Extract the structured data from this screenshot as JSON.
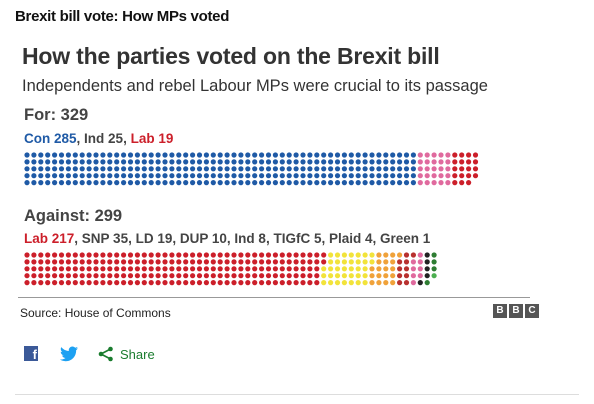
{
  "caption": "Brexit bill vote: How MPs voted",
  "chart": {
    "title": "How the parties voted on the Brexit bill",
    "subtitle": "Independents and rebel Labour MPs were crucial to its passage",
    "source": "Source: House of Commons",
    "logo_letters": [
      "B",
      "B",
      "C"
    ]
  },
  "chart_data": {
    "type": "dot-matrix",
    "groups": [
      {
        "label": "For: 329",
        "total": 329,
        "parties": [
          {
            "name": "Con",
            "value": 285,
            "label": "Con 285",
            "color": "#1f5aa6"
          },
          {
            "name": "Ind",
            "value": 25,
            "label": "Ind 25",
            "color": "#e06a9e"
          },
          {
            "name": "Lab",
            "value": 19,
            "label": "Lab 19",
            "color": "#cc1f2a"
          }
        ]
      },
      {
        "label": "Against: 299",
        "total": 299,
        "parties": [
          {
            "name": "Lab",
            "value": 217,
            "label": "Lab 217",
            "color": "#cc1f2a"
          },
          {
            "name": "SNP",
            "value": 35,
            "label": "SNP 35",
            "color": "#f2e33a"
          },
          {
            "name": "LD",
            "value": 19,
            "label": "LD 19",
            "color": "#f0a23a"
          },
          {
            "name": "DUP",
            "value": 10,
            "label": "DUP 10",
            "color": "#b8312f"
          },
          {
            "name": "Ind",
            "value": 8,
            "label": "Ind 8",
            "color": "#e06a9e"
          },
          {
            "name": "TIGfC",
            "value": 5,
            "label": "TIGfC 5",
            "color": "#222222"
          },
          {
            "name": "Plaid",
            "value": 4,
            "label": "Plaid 4",
            "color": "#2e7d32"
          },
          {
            "name": "Green",
            "value": 1,
            "label": "Green 1",
            "color": "#4caf50"
          }
        ]
      }
    ]
  },
  "share": {
    "facebook_icon": "facebook-icon",
    "twitter_icon": "twitter-icon",
    "share_icon": "share-icon",
    "share_label": "Share",
    "accent": "#1a7c2e"
  }
}
